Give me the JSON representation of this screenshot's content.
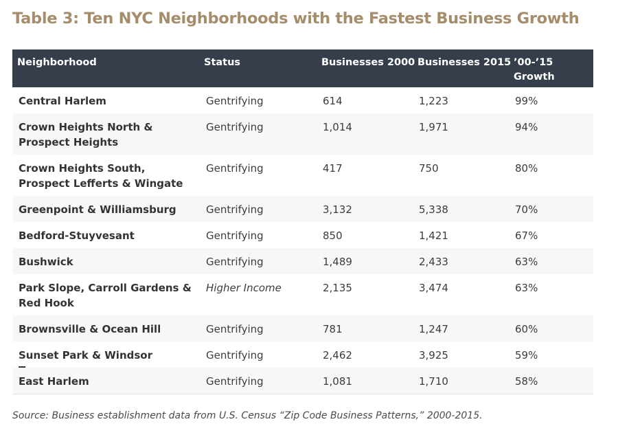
{
  "title": "Table 3: Ten NYC Neighborhoods with the Fastest Business Growth",
  "table": {
    "headers": [
      "Neighborhood",
      "Status",
      "Businesses 2000",
      "Businesses 2015",
      "’00-’15 Growth"
    ],
    "rows": [
      {
        "neighborhood": "Central Harlem",
        "status": "Gentrifying",
        "b2000": "614",
        "b2015": "1,223",
        "growth": "99%"
      },
      {
        "neighborhood": "Crown Heights North & Prospect Heights",
        "status": "Gentrifying",
        "b2000": "1,014",
        "b2015": "1,971",
        "growth": "94%"
      },
      {
        "neighborhood": "Crown Heights South, Prospect Lefferts & Wingate",
        "status": "Gentrifying",
        "b2000": "417",
        "b2015": "750",
        "growth": "80%"
      },
      {
        "neighborhood": "Greenpoint & Williamsburg",
        "status": "Gentrifying",
        "b2000": "3,132",
        "b2015": "5,338",
        "growth": "70%"
      },
      {
        "neighborhood": "Bedford-Stuyvesant",
        "status": "Gentrifying",
        "b2000": "850",
        "b2015": "1,421",
        "growth": "67%"
      },
      {
        "neighborhood": "Bushwick",
        "status": "Gentrifying",
        "b2000": "1,489",
        "b2015": "2,433",
        "growth": "63%"
      },
      {
        "neighborhood": "Park Slope, Carroll Gardens & Red Hook",
        "status": "Higher Income",
        "b2000": "2,135",
        "b2015": "3,474",
        "growth": "63%"
      },
      {
        "neighborhood": "Brownsville & Ocean Hill",
        "status": "Gentrifying",
        "b2000": "781",
        "b2015": "1,247",
        "growth": "60%"
      },
      {
        "neighborhood": "Sunset Park & Windsor Terrace",
        "status": "Gentrifying",
        "b2000": "2,462",
        "b2015": "3,925",
        "growth": "59%"
      },
      {
        "neighborhood": "East Harlem",
        "status": "Gentrifying",
        "b2000": "1,081",
        "b2015": "1,710",
        "growth": "58%"
      }
    ]
  },
  "source": "Source: Business establishment data from U.S. Census “Zip Code Business Patterns,” 2000-2015.",
  "colors": {
    "title": "#a58d6b",
    "header_bg": "#353e4a",
    "row_alt_bg": "#f7f7f7"
  }
}
